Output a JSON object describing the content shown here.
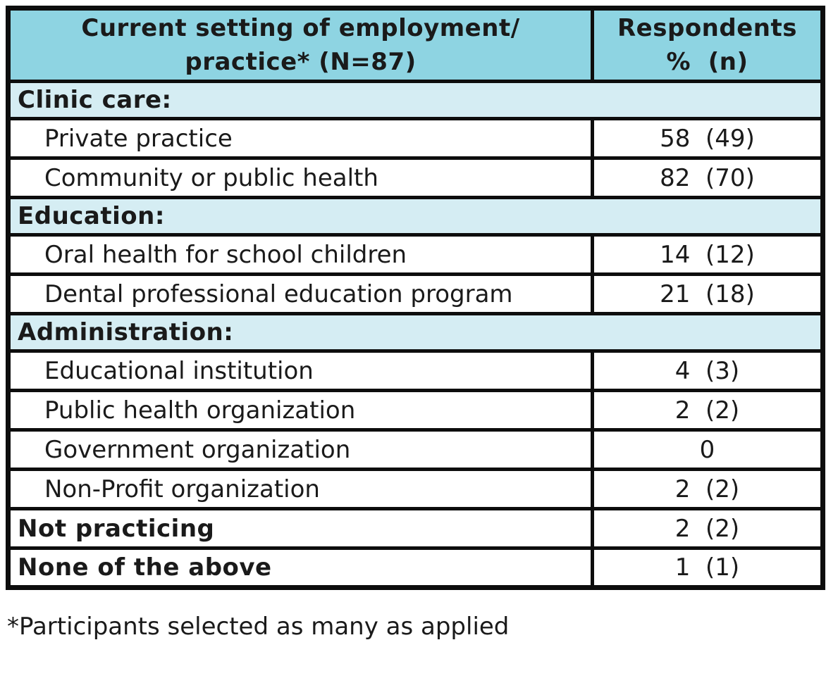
{
  "table": {
    "header": {
      "setting_line1": "Current setting of employment/",
      "setting_line2": "practice* (N=87)",
      "respondents_line1": "Respondents",
      "respondents_line2": "%  (n)"
    },
    "rows": [
      {
        "type": "section",
        "label": "Clinic care:"
      },
      {
        "type": "item",
        "label": "Private practice",
        "value": "58  (49)"
      },
      {
        "type": "item",
        "label": "Community or public health",
        "value": "82  (70)"
      },
      {
        "type": "section",
        "label": "Education:"
      },
      {
        "type": "item",
        "label": "Oral health for school children",
        "value": "14  (12)"
      },
      {
        "type": "item",
        "label": "Dental professional education program",
        "value": "21  (18)"
      },
      {
        "type": "section",
        "label": "Administration:"
      },
      {
        "type": "item",
        "label": "Educational institution",
        "value": "4  (3)"
      },
      {
        "type": "item",
        "label": "Public health organization",
        "value": "2  (2)"
      },
      {
        "type": "item",
        "label": "Government organization",
        "value": "0"
      },
      {
        "type": "item",
        "label": "Non-Profit organization",
        "value": "2  (2)"
      },
      {
        "type": "total",
        "label": "Not practicing",
        "value": "2  (2)"
      },
      {
        "type": "total",
        "label": "None of the above",
        "value": "1  (1)"
      }
    ]
  },
  "footnote": "*Participants selected as many as applied",
  "colors": {
    "header_bg": "#8ed4e2",
    "section_bg": "#d5edf3",
    "border": "#0d0d0d",
    "text": "#1a1a1a",
    "row_bg": "#ffffff"
  }
}
